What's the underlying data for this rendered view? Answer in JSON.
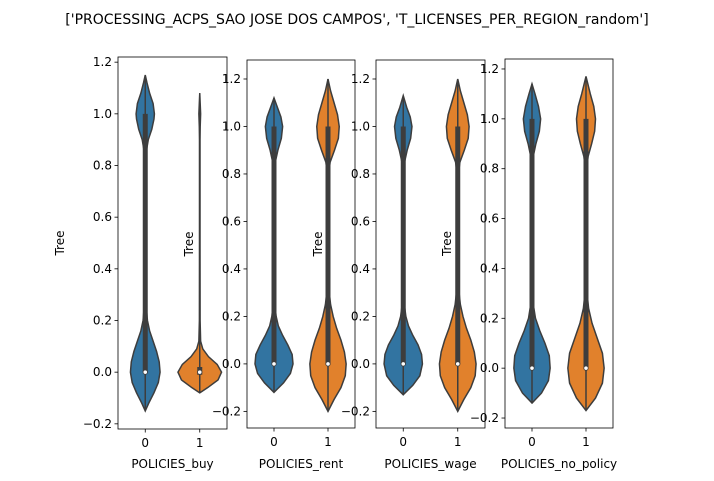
{
  "title": "['PROCESSING_ACPS_SAO JOSE DOS CAMPOS', 'T_LICENSES_PER_REGION_random']",
  "colors": {
    "c0": "#3274a1",
    "c1": "#e1812c",
    "edge": "#3d3d3d"
  },
  "chart_data": [
    {
      "type": "violin",
      "xlabel": "POLICIES_buy",
      "ylabel": "Tree",
      "categories": [
        "0",
        "1"
      ],
      "ylim": [
        -0.22,
        1.22
      ],
      "yticks": [
        -0.2,
        0.0,
        0.2,
        0.4,
        0.6,
        0.8,
        1.0,
        1.2
      ],
      "yticklabels": [
        "−0.2",
        "0.0",
        "0.2",
        "0.4",
        "0.6",
        "0.8",
        "1.0",
        "1.2"
      ],
      "violins": [
        {
          "category": "0",
          "color": "#3274a1",
          "min": -0.15,
          "max": 1.15,
          "median": 0.0,
          "q1": 0.0,
          "q3": 1.0,
          "profile": [
            [
              -0.15,
              0
            ],
            [
              -0.12,
              0.08
            ],
            [
              -0.08,
              0.2
            ],
            [
              -0.04,
              0.3
            ],
            [
              0,
              0.34
            ],
            [
              0.04,
              0.32
            ],
            [
              0.08,
              0.26
            ],
            [
              0.12,
              0.18
            ],
            [
              0.16,
              0.1
            ],
            [
              0.2,
              0.05
            ],
            [
              0.25,
              0.025
            ],
            [
              0.3,
              0.012
            ],
            [
              0.4,
              0.008
            ],
            [
              0.6,
              0.007
            ],
            [
              0.8,
              0.008
            ],
            [
              0.85,
              0.02
            ],
            [
              0.9,
              0.07
            ],
            [
              0.94,
              0.15
            ],
            [
              0.98,
              0.2
            ],
            [
              1.0,
              0.21
            ],
            [
              1.04,
              0.18
            ],
            [
              1.08,
              0.1
            ],
            [
              1.12,
              0.04
            ],
            [
              1.15,
              0
            ]
          ]
        },
        {
          "category": "1",
          "color": "#e1812c",
          "min": -0.08,
          "max": 1.08,
          "median": 0.0,
          "q1": -0.01,
          "q3": 0.02,
          "profile": [
            [
              -0.08,
              0
            ],
            [
              -0.06,
              0.18
            ],
            [
              -0.03,
              0.42
            ],
            [
              0,
              0.5
            ],
            [
              0.03,
              0.4
            ],
            [
              0.06,
              0.2
            ],
            [
              0.09,
              0.07
            ],
            [
              0.12,
              0.02
            ],
            [
              0.2,
              0.008
            ],
            [
              0.5,
              0.006
            ],
            [
              0.9,
              0.006
            ],
            [
              0.95,
              0.01
            ],
            [
              1.0,
              0.02
            ],
            [
              1.04,
              0.01
            ],
            [
              1.08,
              0
            ]
          ]
        }
      ]
    },
    {
      "type": "violin",
      "xlabel": "POLICIES_rent",
      "ylabel": "Tree",
      "categories": [
        "0",
        "1"
      ],
      "ylim": [
        -0.27,
        1.28
      ],
      "yticks": [
        -0.2,
        0.0,
        0.2,
        0.4,
        0.6,
        0.8,
        1.0,
        1.2
      ],
      "yticklabels": [
        "−0.2",
        "0.0",
        "0.2",
        "0.4",
        "0.6",
        "0.8",
        "1.0",
        "1.2"
      ],
      "violins": [
        {
          "category": "0",
          "color": "#3274a1",
          "min": -0.12,
          "max": 1.12,
          "median": 0.0,
          "q1": 0.0,
          "q3": 1.0,
          "profile": [
            [
              -0.12,
              0
            ],
            [
              -0.08,
              0.22
            ],
            [
              -0.04,
              0.38
            ],
            [
              0,
              0.44
            ],
            [
              0.04,
              0.42
            ],
            [
              0.08,
              0.32
            ],
            [
              0.12,
              0.2
            ],
            [
              0.16,
              0.1
            ],
            [
              0.2,
              0.05
            ],
            [
              0.25,
              0.02
            ],
            [
              0.35,
              0.01
            ],
            [
              0.6,
              0.008
            ],
            [
              0.8,
              0.01
            ],
            [
              0.85,
              0.03
            ],
            [
              0.9,
              0.09
            ],
            [
              0.95,
              0.17
            ],
            [
              1.0,
              0.2
            ],
            [
              1.04,
              0.16
            ],
            [
              1.08,
              0.08
            ],
            [
              1.12,
              0
            ]
          ]
        },
        {
          "category": "1",
          "color": "#e1812c",
          "min": -0.2,
          "max": 1.2,
          "median": 0.0,
          "q1": 0.0,
          "q3": 1.0,
          "profile": [
            [
              -0.2,
              0
            ],
            [
              -0.15,
              0.14
            ],
            [
              -0.1,
              0.3
            ],
            [
              -0.05,
              0.4
            ],
            [
              0,
              0.42
            ],
            [
              0.05,
              0.38
            ],
            [
              0.1,
              0.3
            ],
            [
              0.15,
              0.2
            ],
            [
              0.2,
              0.12
            ],
            [
              0.25,
              0.06
            ],
            [
              0.3,
              0.03
            ],
            [
              0.4,
              0.015
            ],
            [
              0.6,
              0.012
            ],
            [
              0.8,
              0.015
            ],
            [
              0.85,
              0.05
            ],
            [
              0.9,
              0.15
            ],
            [
              0.95,
              0.24
            ],
            [
              1.0,
              0.26
            ],
            [
              1.05,
              0.22
            ],
            [
              1.1,
              0.14
            ],
            [
              1.15,
              0.06
            ],
            [
              1.2,
              0
            ]
          ]
        }
      ]
    },
    {
      "type": "violin",
      "xlabel": "POLICIES_wage",
      "ylabel": "Tree",
      "categories": [
        "0",
        "1"
      ],
      "ylim": [
        -0.27,
        1.28
      ],
      "yticks": [
        -0.2,
        0.0,
        0.2,
        0.4,
        0.6,
        0.8,
        1.0,
        1.2
      ],
      "yticklabels": [
        "−0.2",
        "0.0",
        "0.2",
        "0.4",
        "0.6",
        "0.8",
        "1.0",
        "1.2"
      ],
      "violins": [
        {
          "category": "0",
          "color": "#3274a1",
          "min": -0.13,
          "max": 1.13,
          "median": 0.0,
          "q1": 0.0,
          "q3": 1.0,
          "profile": [
            [
              -0.13,
              0
            ],
            [
              -0.09,
              0.22
            ],
            [
              -0.05,
              0.38
            ],
            [
              0,
              0.44
            ],
            [
              0.04,
              0.42
            ],
            [
              0.08,
              0.34
            ],
            [
              0.12,
              0.22
            ],
            [
              0.16,
              0.12
            ],
            [
              0.2,
              0.06
            ],
            [
              0.25,
              0.025
            ],
            [
              0.35,
              0.01
            ],
            [
              0.6,
              0.008
            ],
            [
              0.8,
              0.01
            ],
            [
              0.85,
              0.03
            ],
            [
              0.9,
              0.09
            ],
            [
              0.95,
              0.17
            ],
            [
              1.0,
              0.2
            ],
            [
              1.04,
              0.16
            ],
            [
              1.08,
              0.08
            ],
            [
              1.13,
              0
            ]
          ]
        },
        {
          "category": "1",
          "color": "#e1812c",
          "min": -0.2,
          "max": 1.2,
          "median": 0.0,
          "q1": 0.0,
          "q3": 1.0,
          "profile": [
            [
              -0.2,
              0
            ],
            [
              -0.15,
              0.14
            ],
            [
              -0.1,
              0.3
            ],
            [
              -0.05,
              0.4
            ],
            [
              0,
              0.42
            ],
            [
              0.05,
              0.38
            ],
            [
              0.1,
              0.3
            ],
            [
              0.15,
              0.2
            ],
            [
              0.2,
              0.12
            ],
            [
              0.25,
              0.06
            ],
            [
              0.3,
              0.03
            ],
            [
              0.4,
              0.015
            ],
            [
              0.6,
              0.012
            ],
            [
              0.8,
              0.015
            ],
            [
              0.85,
              0.05
            ],
            [
              0.9,
              0.15
            ],
            [
              0.95,
              0.24
            ],
            [
              1.0,
              0.26
            ],
            [
              1.05,
              0.22
            ],
            [
              1.1,
              0.14
            ],
            [
              1.15,
              0.06
            ],
            [
              1.2,
              0
            ]
          ]
        }
      ]
    },
    {
      "type": "violin",
      "xlabel": "POLICIES_no_policy",
      "ylabel": "Tree",
      "categories": [
        "0",
        "1"
      ],
      "ylim": [
        -0.24,
        1.24
      ],
      "yticks": [
        -0.2,
        0.0,
        0.2,
        0.4,
        0.6,
        0.8,
        1.0,
        1.2
      ],
      "yticklabels": [
        "−0.2",
        "0.0",
        "0.2",
        "0.4",
        "0.6",
        "0.8",
        "1.0",
        "1.2"
      ],
      "violins": [
        {
          "category": "0",
          "color": "#3274a1",
          "min": -0.14,
          "max": 1.14,
          "median": 0.0,
          "q1": 0.0,
          "q3": 1.0,
          "profile": [
            [
              -0.14,
              0
            ],
            [
              -0.1,
              0.22
            ],
            [
              -0.05,
              0.38
            ],
            [
              0,
              0.42
            ],
            [
              0.05,
              0.4
            ],
            [
              0.1,
              0.3
            ],
            [
              0.15,
              0.18
            ],
            [
              0.2,
              0.08
            ],
            [
              0.25,
              0.035
            ],
            [
              0.3,
              0.015
            ],
            [
              0.5,
              0.008
            ],
            [
              0.8,
              0.01
            ],
            [
              0.85,
              0.03
            ],
            [
              0.9,
              0.09
            ],
            [
              0.95,
              0.17
            ],
            [
              1.0,
              0.2
            ],
            [
              1.05,
              0.15
            ],
            [
              1.1,
              0.07
            ],
            [
              1.14,
              0
            ]
          ]
        },
        {
          "category": "1",
          "color": "#e1812c",
          "min": -0.17,
          "max": 1.17,
          "median": 0.0,
          "q1": 0.0,
          "q3": 1.0,
          "profile": [
            [
              -0.17,
              0
            ],
            [
              -0.12,
              0.22
            ],
            [
              -0.06,
              0.38
            ],
            [
              0,
              0.42
            ],
            [
              0.06,
              0.38
            ],
            [
              0.12,
              0.26
            ],
            [
              0.18,
              0.14
            ],
            [
              0.24,
              0.06
            ],
            [
              0.3,
              0.025
            ],
            [
              0.5,
              0.012
            ],
            [
              0.8,
              0.015
            ],
            [
              0.85,
              0.05
            ],
            [
              0.9,
              0.13
            ],
            [
              0.95,
              0.2
            ],
            [
              1.0,
              0.22
            ],
            [
              1.05,
              0.18
            ],
            [
              1.1,
              0.1
            ],
            [
              1.17,
              0
            ]
          ]
        }
      ]
    }
  ]
}
